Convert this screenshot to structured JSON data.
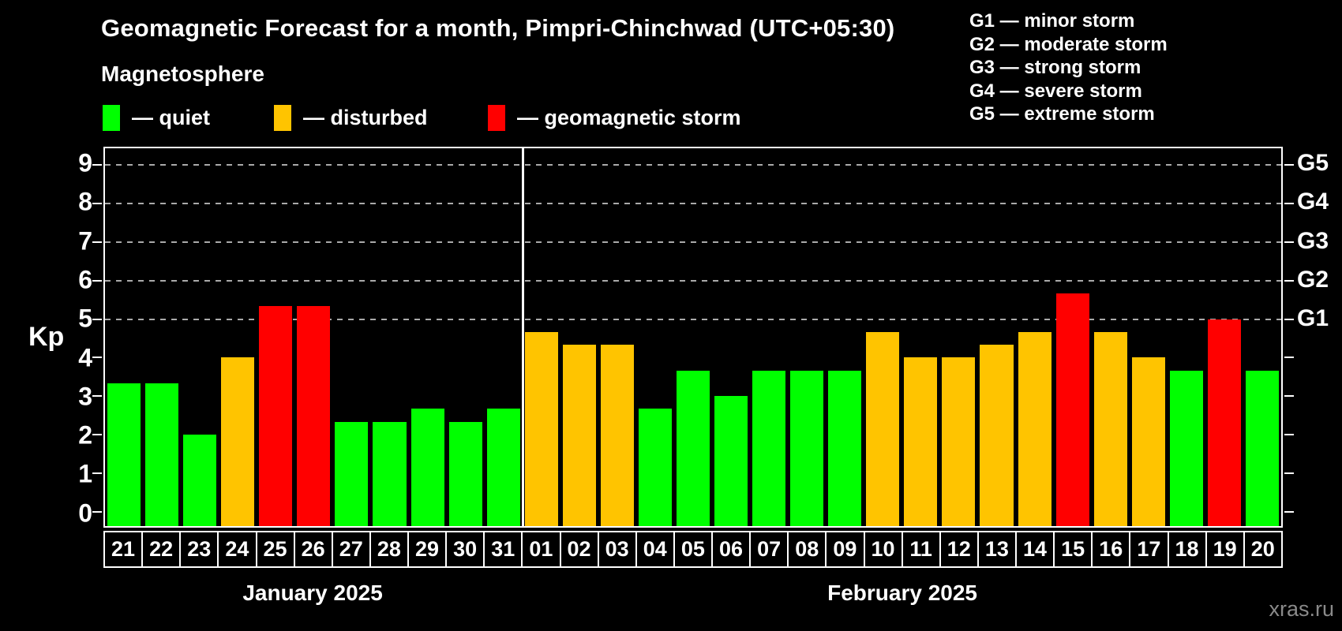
{
  "header": {
    "title": "Geomagnetic Forecast for a month, Pimpri-Chinchwad (UTC+05:30)",
    "subtitle": "Magnetosphere",
    "legend": [
      {
        "key": "quiet",
        "label": "— quiet",
        "color": "#00ff00"
      },
      {
        "key": "disturbed",
        "label": "— disturbed",
        "color": "#ffc400"
      },
      {
        "key": "storm",
        "label": "— geomagnetic storm",
        "color": "#ff0000"
      }
    ],
    "g_scale": [
      "G1 — minor storm",
      "G2 — moderate storm",
      "G3 — strong storm",
      "G4 — severe storm",
      "G5 — extreme storm"
    ]
  },
  "axes": {
    "kp_label": "Kp",
    "y_ticks": [
      0,
      1,
      2,
      3,
      4,
      5,
      6,
      7,
      8,
      9
    ],
    "right_axis": [
      {
        "kp": 5,
        "label": "G1"
      },
      {
        "kp": 6,
        "label": "G2"
      },
      {
        "kp": 7,
        "label": "G3"
      },
      {
        "kp": 8,
        "label": "G4"
      },
      {
        "kp": 9,
        "label": "G5"
      }
    ]
  },
  "chart_data": {
    "type": "bar",
    "title": "Geomagnetic Forecast for a month, Pimpri-Chinchwad (UTC+05:30)",
    "xlabel": "",
    "ylabel": "Kp",
    "ylim": [
      -0.37,
      9.43
    ],
    "grid_levels": [
      5,
      6,
      7,
      8,
      9
    ],
    "legend_position": "top-left",
    "categories": [
      "21",
      "22",
      "23",
      "24",
      "25",
      "26",
      "27",
      "28",
      "29",
      "30",
      "31",
      "01",
      "02",
      "03",
      "04",
      "05",
      "06",
      "07",
      "08",
      "09",
      "10",
      "11",
      "12",
      "13",
      "14",
      "15",
      "16",
      "17",
      "18",
      "19",
      "20"
    ],
    "values": [
      3.33,
      3.33,
      2.0,
      4.0,
      5.33,
      5.33,
      2.33,
      2.33,
      2.67,
      2.33,
      2.67,
      4.67,
      4.33,
      4.33,
      2.67,
      3.67,
      3.0,
      3.67,
      3.67,
      3.67,
      4.67,
      4.0,
      4.0,
      4.33,
      4.67,
      5.67,
      4.67,
      4.0,
      3.67,
      5.0,
      3.67
    ],
    "statuses": [
      "quiet",
      "quiet",
      "quiet",
      "disturbed",
      "storm",
      "storm",
      "quiet",
      "quiet",
      "quiet",
      "quiet",
      "quiet",
      "disturbed",
      "disturbed",
      "disturbed",
      "quiet",
      "quiet",
      "quiet",
      "quiet",
      "quiet",
      "quiet",
      "disturbed",
      "disturbed",
      "disturbed",
      "disturbed",
      "disturbed",
      "storm",
      "disturbed",
      "disturbed",
      "quiet",
      "storm",
      "quiet"
    ],
    "status_colors": {
      "quiet": "#00ff00",
      "disturbed": "#ffc400",
      "storm": "#ff0000"
    },
    "months": [
      {
        "label": "January 2025",
        "days": 11
      },
      {
        "label": "February 2025",
        "days": 20
      }
    ]
  },
  "watermark": "xras.ru"
}
